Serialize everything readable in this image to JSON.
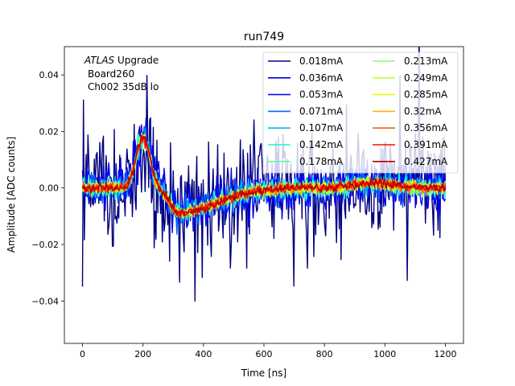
{
  "chart_data": {
    "type": "line",
    "title": "run749",
    "xlabel": "Time [ns]",
    "ylabel": "Amplitude [ADC counts]",
    "xlim": [
      -60,
      1260
    ],
    "ylim": [
      -0.055,
      0.05
    ],
    "xticks": [
      0,
      200,
      400,
      600,
      800,
      1000,
      1200
    ],
    "yticks": [
      -0.04,
      -0.02,
      0.0,
      0.02,
      0.04
    ],
    "xtick_labels": [
      "0",
      "200",
      "400",
      "600",
      "800",
      "1000",
      "1200"
    ],
    "ytick_labels": [
      "−0.04",
      "−0.02",
      "0.00",
      "0.02",
      "0.04"
    ],
    "annotation": {
      "line1_italic": "ATLAS",
      "line1_rest": " Upgrade",
      "line2": "Board260",
      "line3": "Ch002 35dB lo"
    },
    "legend_position": "top-right",
    "legend_columns": 2,
    "x_range_ns": [
      0,
      1200
    ],
    "pulse_peak_time_ns": 200,
    "pulse_trough_time_ns": 320,
    "series": [
      {
        "name": "0.018mA",
        "color": "#00007f",
        "noise": 0.011,
        "peak": 0.016,
        "trough": -0.008
      },
      {
        "name": "0.036mA",
        "color": "#0000e3",
        "noise": 0.0045,
        "peak": 0.0165,
        "trough": -0.0082
      },
      {
        "name": "0.053mA",
        "color": "#0010ff",
        "noise": 0.0032,
        "peak": 0.0168,
        "trough": -0.0083
      },
      {
        "name": "0.071mA",
        "color": "#0068ff",
        "noise": 0.0025,
        "peak": 0.017,
        "trough": -0.0084
      },
      {
        "name": "0.107mA",
        "color": "#00b8ff",
        "noise": 0.002,
        "peak": 0.0172,
        "trough": -0.0085
      },
      {
        "name": "0.142mA",
        "color": "#1cf5da",
        "noise": 0.0016,
        "peak": 0.0173,
        "trough": -0.0085
      },
      {
        "name": "0.178mA",
        "color": "#59ff9d",
        "noise": 0.0014,
        "peak": 0.0174,
        "trough": -0.0086
      },
      {
        "name": "0.213mA",
        "color": "#84ff72",
        "noise": 0.0012,
        "peak": 0.0175,
        "trough": -0.0086
      },
      {
        "name": "0.249mA",
        "color": "#bdff39",
        "noise": 0.0011,
        "peak": 0.0176,
        "trough": -0.0086
      },
      {
        "name": "0.285mA",
        "color": "#f3f900",
        "noise": 0.001,
        "peak": 0.0177,
        "trough": -0.0087
      },
      {
        "name": "0.32mA",
        "color": "#ffb100",
        "noise": 0.001,
        "peak": 0.0178,
        "trough": -0.0087
      },
      {
        "name": "0.356mA",
        "color": "#ff6100",
        "noise": 0.0009,
        "peak": 0.0178,
        "trough": -0.0087
      },
      {
        "name": "0.391mA",
        "color": "#f81000",
        "noise": 0.0009,
        "peak": 0.0179,
        "trough": -0.0088
      },
      {
        "name": "0.427mA",
        "color": "#b10000",
        "noise": 0.0008,
        "peak": 0.018,
        "trough": -0.0088
      }
    ]
  }
}
